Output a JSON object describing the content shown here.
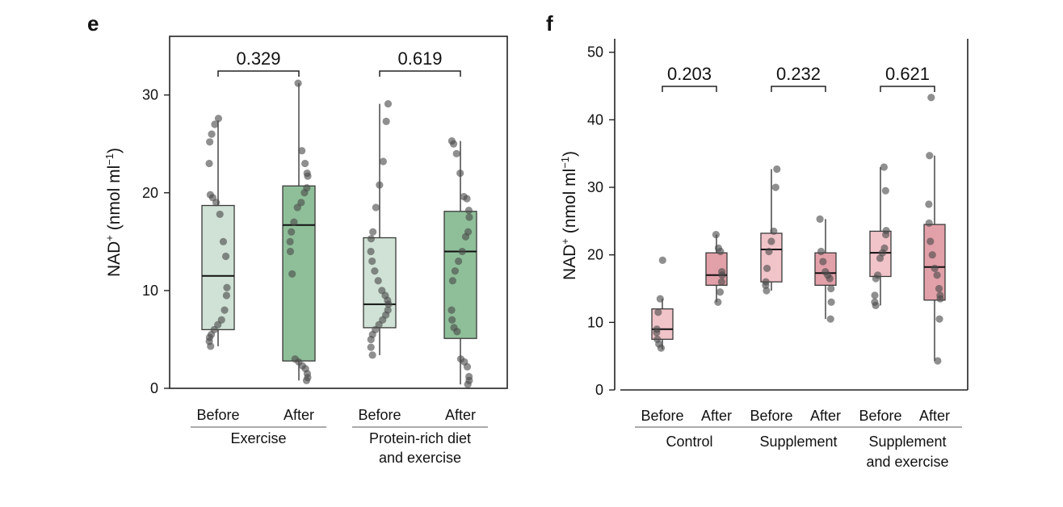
{
  "chart_data": [
    {
      "panel": "e",
      "type": "box",
      "ylabel_main": "NAD",
      "ylabel_sup": "+",
      "ylabel_unit": " (nmol ml",
      "ylabel_unit_sup": "−1",
      "ylabel_close": ")",
      "ylim": [
        0,
        36
      ],
      "yticks": [
        0,
        10,
        20,
        30
      ],
      "colors": {
        "before": "#cfe2d5",
        "after": "#8fbf99",
        "edge": "#3a3a3a",
        "point": "#4a4a4a"
      },
      "groups": [
        {
          "name_lines": [
            "Exercise"
          ],
          "pvalue": "0.329",
          "boxes": [
            {
              "label": "Before",
              "q1": 6.0,
              "median": 11.5,
              "q3": 18.7,
              "whisker_low": 4.3,
              "whisker_high": 27.4,
              "points": [
                27.6,
                27.0,
                26.0,
                25.2,
                23.0,
                19.8,
                19.5,
                19.0,
                17.8,
                15.0,
                13.5,
                10.3,
                9.5,
                8.0,
                7.0,
                6.5,
                6.0,
                5.5,
                5.2,
                4.8,
                4.3
              ]
            },
            {
              "label": "After",
              "q1": 2.8,
              "median": 16.7,
              "q3": 20.7,
              "whisker_low": 0.8,
              "whisker_high": 31.2,
              "points": [
                31.2,
                24.3,
                23.0,
                22.0,
                21.7,
                20.5,
                20.0,
                19.0,
                18.5,
                17.0,
                16.0,
                15.0,
                14.0,
                11.7,
                3.0,
                2.7,
                2.3,
                2.0,
                1.5,
                1.1,
                0.8
              ]
            }
          ]
        },
        {
          "name_lines": [
            "Protein-rich diet",
            "and exercise"
          ],
          "pvalue": "0.619",
          "boxes": [
            {
              "label": "Before",
              "q1": 6.2,
              "median": 8.6,
              "q3": 15.4,
              "whisker_low": 3.4,
              "whisker_high": 29.1,
              "points": [
                29.1,
                27.3,
                23.2,
                20.8,
                18.5,
                16.0,
                15.3,
                14.0,
                13.0,
                12.0,
                11.0,
                10.0,
                9.5,
                9.0,
                8.6,
                8.0,
                7.5,
                7.0,
                6.5,
                6.0,
                5.5,
                5.0,
                4.2,
                3.4
              ]
            },
            {
              "label": "After",
              "q1": 5.1,
              "median": 14.0,
              "q3": 18.1,
              "whisker_low": 0.4,
              "whisker_high": 25.3,
              "points": [
                25.3,
                25.0,
                24.0,
                22.0,
                19.6,
                19.4,
                18.2,
                17.5,
                16.0,
                15.5,
                14.0,
                13.0,
                12.0,
                11.0,
                8.0,
                7.0,
                6.2,
                5.8,
                3.0,
                2.7,
                2.2,
                1.2,
                0.8,
                0.4
              ]
            }
          ]
        }
      ]
    },
    {
      "panel": "f",
      "type": "box",
      "ylabel_main": "NAD",
      "ylabel_sup": "+",
      "ylabel_unit": " (nmol ml",
      "ylabel_unit_sup": "−1",
      "ylabel_close": ")",
      "ylim": [
        0,
        52
      ],
      "yticks": [
        0,
        10,
        20,
        30,
        40,
        50
      ],
      "colors": {
        "before": "#f1c4ca",
        "after": "#e2a0a9",
        "edge": "#3a3a3a",
        "point": "#4a4a4a"
      },
      "groups": [
        {
          "name_lines": [
            "Control"
          ],
          "pvalue": "0.203",
          "boxes": [
            {
              "label": "Before",
              "q1": 7.5,
              "median": 9.0,
              "q3": 12.0,
              "whisker_low": 6.0,
              "whisker_high": 13.5,
              "points": [
                19.2,
                13.5,
                11.5,
                9.0,
                8.5,
                7.5,
                6.8,
                6.2
              ]
            },
            {
              "label": "After",
              "q1": 15.5,
              "median": 17.0,
              "q3": 20.3,
              "whisker_low": 13.0,
              "whisker_high": 23.0,
              "points": [
                23.0,
                21.0,
                20.5,
                17.5,
                17.0,
                16.0,
                14.5,
                13.0
              ]
            }
          ]
        },
        {
          "name_lines": [
            "Supplement"
          ],
          "pvalue": "0.232",
          "boxes": [
            {
              "label": "Before",
              "q1": 16.0,
              "median": 20.8,
              "q3": 23.2,
              "whisker_low": 14.7,
              "whisker_high": 32.7,
              "points": [
                32.7,
                30.0,
                23.5,
                22.0,
                20.5,
                18.0,
                16.0,
                15.5,
                14.7
              ]
            },
            {
              "label": "After",
              "q1": 15.5,
              "median": 17.3,
              "q3": 20.3,
              "whisker_low": 10.5,
              "whisker_high": 25.3,
              "points": [
                25.3,
                20.5,
                19.0,
                17.5,
                17.0,
                16.5,
                15.0,
                13.0,
                10.5
              ]
            }
          ]
        },
        {
          "name_lines": [
            "Supplement",
            "and exercise"
          ],
          "pvalue": "0.621",
          "boxes": [
            {
              "label": "Before",
              "q1": 16.8,
              "median": 20.3,
              "q3": 23.5,
              "whisker_low": 12.5,
              "whisker_high": 33.0,
              "points": [
                33.0,
                29.5,
                23.6,
                23.0,
                21.0,
                20.3,
                19.5,
                17.0,
                16.5,
                14.0,
                13.0,
                12.5
              ]
            },
            {
              "label": "After",
              "q1": 13.3,
              "median": 18.2,
              "q3": 24.5,
              "whisker_low": 4.3,
              "whisker_high": 34.7,
              "points": [
                43.3,
                34.7,
                27.5,
                24.7,
                22.0,
                20.0,
                18.0,
                17.0,
                15.0,
                14.0,
                13.5,
                10.5,
                4.3
              ]
            }
          ]
        }
      ]
    }
  ]
}
